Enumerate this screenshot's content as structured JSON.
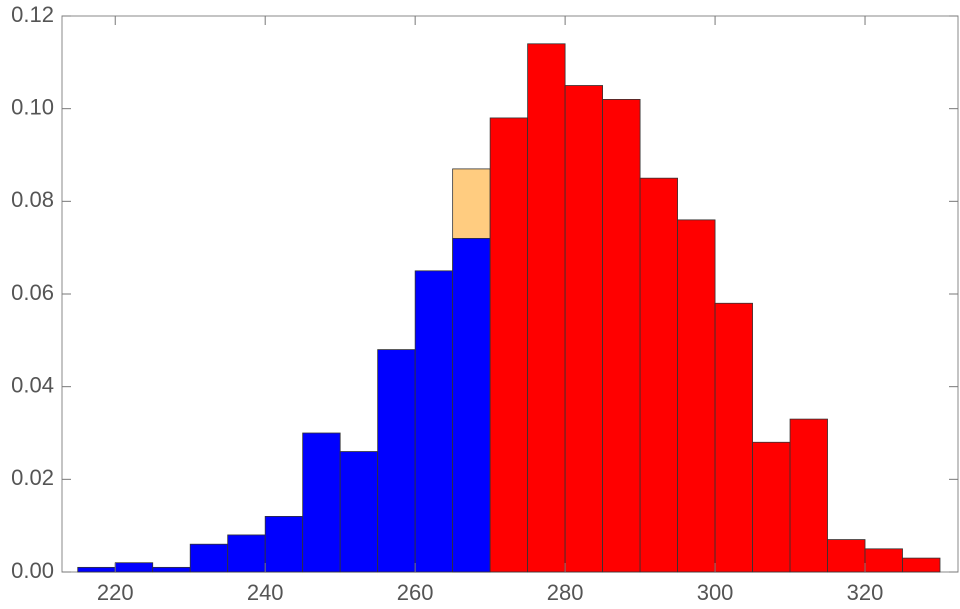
{
  "chart_data": {
    "type": "histogram",
    "series": [
      {
        "color": "#ffcc80",
        "bins": [
          265,
          270
        ],
        "values": [
          0.087
        ]
      },
      {
        "color": "#0000ff",
        "bins": [
          215,
          220,
          225,
          230,
          235,
          240,
          245,
          250,
          255,
          260,
          265,
          270
        ],
        "values": [
          0.001,
          0.002,
          0.001,
          0.006,
          0.008,
          0.012,
          0.03,
          0.026,
          0.048,
          0.065,
          0.072
        ]
      },
      {
        "color": "#ff0000",
        "bins": [
          270,
          275,
          280,
          285,
          290,
          295,
          300,
          305,
          310,
          315,
          320,
          325,
          330
        ],
        "values": [
          0.098,
          0.114,
          0.105,
          0.102,
          0.085,
          0.076,
          0.058,
          0.028,
          0.033,
          0.007,
          0.005,
          0.003
        ]
      }
    ],
    "xlim": [
      212.9,
      332.4
    ],
    "xticks": [
      220,
      240,
      260,
      280,
      300,
      320
    ],
    "ylim": [
      0,
      0.12
    ],
    "yticks": [
      {
        "value": 0,
        "label": "0.00"
      },
      {
        "value": 0.02,
        "label": "0.02"
      },
      {
        "value": 0.04,
        "label": "0.04"
      },
      {
        "value": 0.06,
        "label": "0.06"
      },
      {
        "value": 0.08,
        "label": "0.08"
      },
      {
        "value": 0.1,
        "label": "0.10"
      },
      0.12
    ]
  }
}
